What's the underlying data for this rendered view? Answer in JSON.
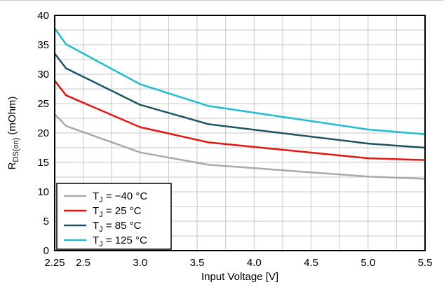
{
  "chart_data": {
    "type": "line",
    "title": "",
    "xlabel": "Input Voltage [V]",
    "ylabel": {
      "main": "R",
      "sub": "DS(on)",
      "unit": " (mOhm)"
    },
    "xlim": [
      2.25,
      5.5
    ],
    "ylim": [
      0,
      40
    ],
    "x_ticks": [
      2.25,
      2.5,
      3.0,
      3.5,
      4.0,
      4.5,
      5.0,
      5.5
    ],
    "x_tick_labels": [
      "2.25",
      "2.5",
      "3.0",
      "3.5",
      "4.0",
      "4.5",
      "5.0",
      "5.5"
    ],
    "y_ticks": [
      0,
      5,
      10,
      15,
      20,
      25,
      30,
      35,
      40
    ],
    "y_tick_labels": [
      "0",
      "5",
      "10",
      "15",
      "20",
      "25",
      "30",
      "35",
      "40"
    ],
    "x_grid": [
      2.25,
      2.5,
      2.75,
      3.0,
      3.25,
      3.5,
      3.75,
      4.0,
      4.25,
      4.5,
      4.75,
      5.0,
      5.25,
      5.5
    ],
    "y_grid": [
      2.5,
      5,
      7.5,
      10,
      12.5,
      15,
      17.5,
      20,
      22.5,
      25,
      27.5,
      30,
      32.5,
      35,
      37.5,
      40
    ],
    "grid": true,
    "legend_position": "bottom-left",
    "series": [
      {
        "label_main": "T",
        "label_sub": "J",
        "label_rest": " = −40 °C",
        "color": "#a9a9a9",
        "x": [
          2.25,
          2.35,
          3.0,
          3.6,
          5.0,
          5.5
        ],
        "y": [
          23.2,
          21.2,
          16.7,
          14.6,
          12.6,
          12.2
        ]
      },
      {
        "label_main": "T",
        "label_sub": "J",
        "label_rest": " = 25 °C",
        "color": "#e8140d",
        "x": [
          2.25,
          2.35,
          3.0,
          3.6,
          5.0,
          5.5
        ],
        "y": [
          28.9,
          26.4,
          21.0,
          18.4,
          15.7,
          15.4
        ]
      },
      {
        "label_main": "T",
        "label_sub": "J",
        "label_rest": " = 85 °C",
        "color": "#1d5463",
        "x": [
          2.25,
          2.35,
          3.0,
          3.6,
          5.0,
          5.5
        ],
        "y": [
          33.5,
          31.0,
          24.8,
          21.5,
          18.2,
          17.5
        ]
      },
      {
        "label_main": "T",
        "label_sub": "J",
        "label_rest": " = 125 °C",
        "color": "#1cbecf",
        "x": [
          2.25,
          2.35,
          3.0,
          3.6,
          5.0,
          5.5
        ],
        "y": [
          37.8,
          35.1,
          28.3,
          24.6,
          20.6,
          19.8
        ]
      }
    ]
  }
}
